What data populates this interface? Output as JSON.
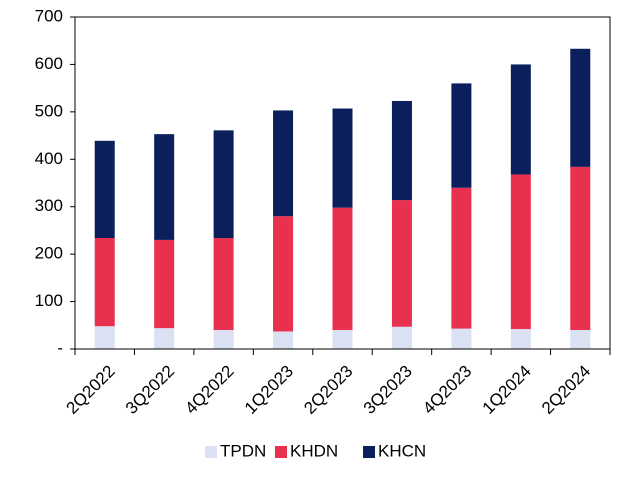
{
  "chart_data": {
    "type": "stacked_bar",
    "categories": [
      "2Q2022",
      "3Q2022",
      "4Q2022",
      "1Q2023",
      "2Q2023",
      "3Q2023",
      "4Q2023",
      "1Q2024",
      "2Q2024"
    ],
    "series": [
      {
        "name": "TPDN",
        "color": "#d9e1f2",
        "values": [
          48,
          44,
          40,
          37,
          40,
          47,
          43,
          42,
          40
        ]
      },
      {
        "name": "KHDN",
        "color": "#e8304f",
        "values": [
          186,
          186,
          194,
          243,
          258,
          267,
          297,
          326,
          344
        ]
      },
      {
        "name": "KHCN",
        "color": "#0a1f5c",
        "values": [
          205,
          223,
          227,
          223,
          209,
          209,
          220,
          232,
          249
        ]
      }
    ],
    "ylim": [
      0,
      700
    ],
    "yticks": [
      {
        "value": 0,
        "label": "-"
      },
      100,
      200,
      300,
      400,
      500,
      600,
      700
    ],
    "legend": "bottom"
  }
}
